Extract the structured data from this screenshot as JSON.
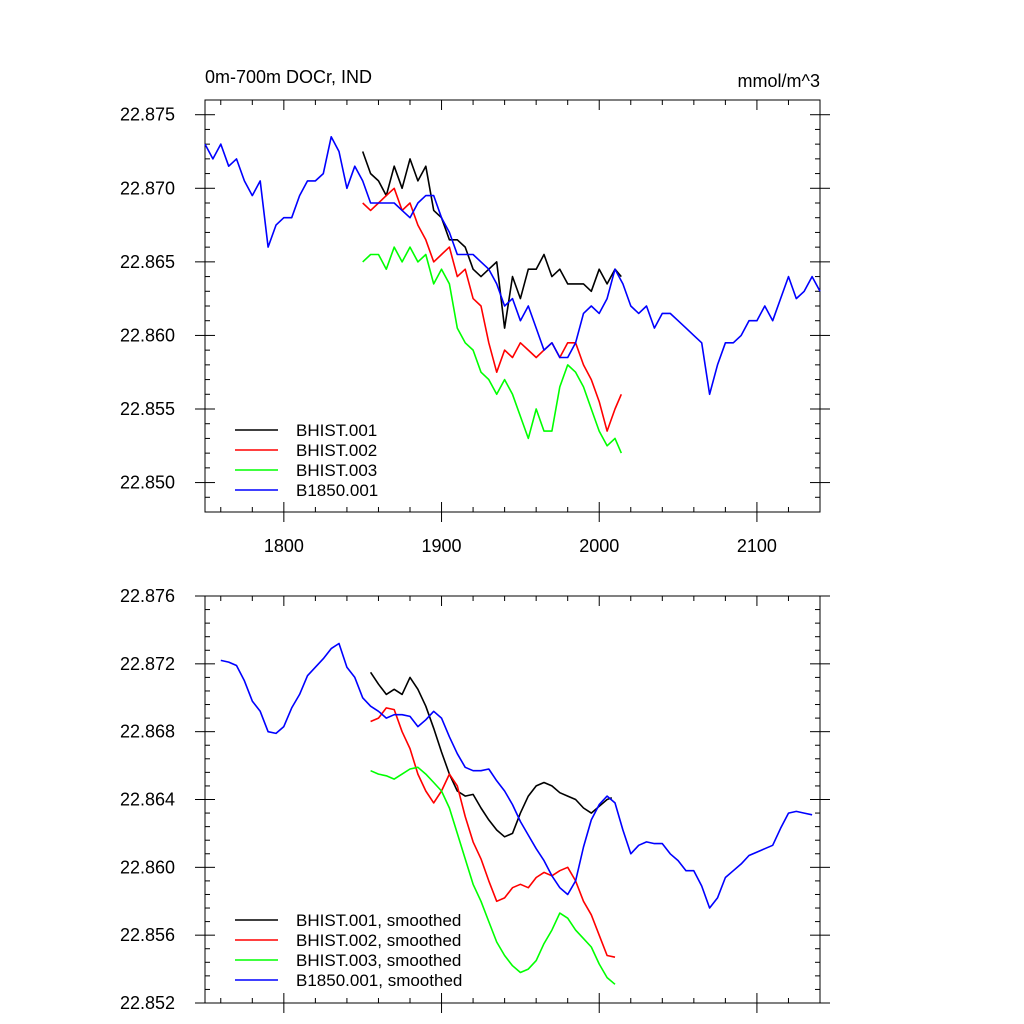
{
  "chart_data": [
    {
      "type": "line",
      "title": "0m-700m DOCr, IND",
      "units": "mmol/m^3",
      "xlabel": "",
      "ylabel": "",
      "xlim": [
        1750,
        2140
      ],
      "ylim": [
        22.848,
        22.876
      ],
      "xticks": [
        1800,
        1900,
        2000,
        2100
      ],
      "xtick_labels": [
        "1800",
        "1900",
        "2000",
        "2100"
      ],
      "yticks": [
        22.85,
        22.855,
        22.86,
        22.865,
        22.87,
        22.875
      ],
      "ytick_labels": [
        "22.850",
        "22.855",
        "22.860",
        "22.865",
        "22.870",
        "22.875"
      ],
      "legend_position": "bottom-left",
      "series": [
        {
          "name": "BHIST.001",
          "color": "#000000",
          "x": [
            1850,
            1855,
            1860,
            1865,
            1870,
            1875,
            1880,
            1885,
            1890,
            1895,
            1900,
            1905,
            1910,
            1915,
            1920,
            1925,
            1930,
            1935,
            1940,
            1945,
            1950,
            1955,
            1960,
            1965,
            1970,
            1975,
            1980,
            1985,
            1990,
            1995,
            2000,
            2005,
            2010,
            2014
          ],
          "values": [
            22.8725,
            22.871,
            22.8705,
            22.8695,
            22.8715,
            22.87,
            22.872,
            22.8705,
            22.8715,
            22.8685,
            22.868,
            22.8665,
            22.8665,
            22.866,
            22.8645,
            22.864,
            22.8645,
            22.865,
            22.8605,
            22.864,
            22.8625,
            22.8645,
            22.8645,
            22.8655,
            22.864,
            22.8645,
            22.8635,
            22.8635,
            22.8635,
            22.863,
            22.8645,
            22.8635,
            22.8645,
            22.864
          ]
        },
        {
          "name": "BHIST.002",
          "color": "#ff0000",
          "x": [
            1850,
            1855,
            1860,
            1865,
            1870,
            1875,
            1880,
            1885,
            1890,
            1895,
            1900,
            1905,
            1910,
            1915,
            1920,
            1925,
            1930,
            1935,
            1940,
            1945,
            1950,
            1955,
            1960,
            1965,
            1970,
            1975,
            1980,
            1985,
            1990,
            1995,
            2000,
            2005,
            2010,
            2014
          ],
          "values": [
            22.869,
            22.8685,
            22.869,
            22.8695,
            22.87,
            22.8685,
            22.869,
            22.8675,
            22.8665,
            22.865,
            22.8655,
            22.866,
            22.864,
            22.8645,
            22.8625,
            22.862,
            22.8595,
            22.8575,
            22.859,
            22.8585,
            22.8595,
            22.859,
            22.8585,
            22.859,
            22.8595,
            22.8585,
            22.8595,
            22.8595,
            22.858,
            22.857,
            22.8555,
            22.8535,
            22.855,
            22.856
          ]
        },
        {
          "name": "BHIST.003",
          "color": "#00ff00",
          "x": [
            1850,
            1855,
            1860,
            1865,
            1870,
            1875,
            1880,
            1885,
            1890,
            1895,
            1900,
            1905,
            1910,
            1915,
            1920,
            1925,
            1930,
            1935,
            1940,
            1945,
            1950,
            1955,
            1960,
            1965,
            1970,
            1975,
            1980,
            1985,
            1990,
            1995,
            2000,
            2005,
            2010,
            2014
          ],
          "values": [
            22.865,
            22.8655,
            22.8655,
            22.8645,
            22.866,
            22.865,
            22.866,
            22.865,
            22.8655,
            22.8635,
            22.8645,
            22.8635,
            22.8605,
            22.8595,
            22.859,
            22.8575,
            22.857,
            22.856,
            22.857,
            22.856,
            22.8545,
            22.853,
            22.855,
            22.8535,
            22.8535,
            22.8565,
            22.858,
            22.8575,
            22.8565,
            22.855,
            22.8535,
            22.8525,
            22.853,
            22.852
          ]
        },
        {
          "name": "B1850.001",
          "color": "#0000ff",
          "x": [
            1750,
            1755,
            1760,
            1765,
            1770,
            1775,
            1780,
            1785,
            1790,
            1795,
            1800,
            1805,
            1810,
            1815,
            1820,
            1825,
            1830,
            1835,
            1840,
            1845,
            1850,
            1855,
            1860,
            1865,
            1870,
            1875,
            1880,
            1885,
            1890,
            1895,
            1900,
            1905,
            1910,
            1915,
            1920,
            1925,
            1930,
            1935,
            1940,
            1945,
            1950,
            1955,
            1960,
            1965,
            1970,
            1975,
            1980,
            1985,
            1990,
            1995,
            2000,
            2005,
            2010,
            2015,
            2020,
            2025,
            2030,
            2035,
            2040,
            2045,
            2050,
            2055,
            2060,
            2065,
            2070,
            2075,
            2080,
            2085,
            2090,
            2095,
            2100,
            2105,
            2110,
            2115,
            2120,
            2125,
            2130,
            2135,
            2140
          ],
          "values": [
            22.873,
            22.872,
            22.873,
            22.8715,
            22.872,
            22.8705,
            22.8695,
            22.8705,
            22.866,
            22.8675,
            22.868,
            22.868,
            22.8695,
            22.8705,
            22.8705,
            22.871,
            22.8735,
            22.8725,
            22.87,
            22.8715,
            22.8705,
            22.869,
            22.869,
            22.869,
            22.869,
            22.8685,
            22.868,
            22.869,
            22.8695,
            22.8695,
            22.868,
            22.867,
            22.8655,
            22.8655,
            22.8655,
            22.865,
            22.8645,
            22.8635,
            22.862,
            22.8625,
            22.861,
            22.862,
            22.8605,
            22.859,
            22.8595,
            22.8585,
            22.8585,
            22.8595,
            22.8615,
            22.862,
            22.8615,
            22.8625,
            22.8645,
            22.8635,
            22.862,
            22.8615,
            22.862,
            22.8605,
            22.8615,
            22.8615,
            22.861,
            22.8605,
            22.86,
            22.8595,
            22.856,
            22.858,
            22.8595,
            22.8595,
            22.86,
            22.861,
            22.861,
            22.862,
            22.861,
            22.8625,
            22.864,
            22.8625,
            22.863,
            22.864,
            22.863
          ]
        }
      ]
    },
    {
      "type": "line",
      "title": "",
      "xlabel": "",
      "ylabel": "",
      "xlim": [
        1750,
        2140
      ],
      "ylim": [
        22.852,
        22.876
      ],
      "xticks": [
        1800,
        1900,
        2000,
        2100
      ],
      "yticks": [
        22.852,
        22.856,
        22.86,
        22.864,
        22.868,
        22.872,
        22.876
      ],
      "ytick_labels": [
        "22.852",
        "22.856",
        "22.860",
        "22.864",
        "22.868",
        "22.872",
        "22.876"
      ],
      "legend_position": "bottom-left",
      "series": [
        {
          "name": "BHIST.001, smoothed",
          "color": "#000000",
          "x": [
            1855,
            1860,
            1865,
            1870,
            1875,
            1880,
            1885,
            1890,
            1895,
            1900,
            1905,
            1910,
            1915,
            1920,
            1925,
            1930,
            1935,
            1940,
            1945,
            1950,
            1955,
            1960,
            1965,
            1970,
            1975,
            1980,
            1985,
            1990,
            1995,
            2000,
            2005,
            2008
          ],
          "values": [
            22.8715,
            22.8708,
            22.8702,
            22.8705,
            22.8702,
            22.8712,
            22.8705,
            22.8695,
            22.8682,
            22.8668,
            22.8655,
            22.8645,
            22.8642,
            22.8643,
            22.8635,
            22.8628,
            22.8622,
            22.8618,
            22.862,
            22.8632,
            22.8642,
            22.8648,
            22.865,
            22.8648,
            22.8644,
            22.8642,
            22.864,
            22.8635,
            22.8632,
            22.8636,
            22.864,
            22.8641
          ]
        },
        {
          "name": "BHIST.002, smoothed",
          "color": "#ff0000",
          "x": [
            1855,
            1860,
            1865,
            1870,
            1875,
            1880,
            1885,
            1890,
            1895,
            1900,
            1905,
            1910,
            1915,
            1920,
            1925,
            1930,
            1935,
            1940,
            1945,
            1950,
            1955,
            1960,
            1965,
            1970,
            1975,
            1980,
            1985,
            1990,
            1995,
            2000,
            2005,
            2010
          ],
          "values": [
            22.8686,
            22.8688,
            22.8694,
            22.8693,
            22.868,
            22.867,
            22.8655,
            22.8645,
            22.8638,
            22.8645,
            22.8655,
            22.8648,
            22.863,
            22.8615,
            22.8605,
            22.8592,
            22.858,
            22.8582,
            22.8588,
            22.859,
            22.8588,
            22.8594,
            22.8597,
            22.8595,
            22.8598,
            22.86,
            22.8592,
            22.858,
            22.8572,
            22.856,
            22.8548,
            22.8547
          ]
        },
        {
          "name": "BHIST.003, smoothed",
          "color": "#00ff00",
          "x": [
            1855,
            1860,
            1865,
            1870,
            1875,
            1880,
            1885,
            1890,
            1895,
            1900,
            1905,
            1910,
            1915,
            1920,
            1925,
            1930,
            1935,
            1940,
            1945,
            1950,
            1955,
            1960,
            1965,
            1970,
            1975,
            1980,
            1985,
            1990,
            1995,
            2000,
            2005,
            2010
          ],
          "values": [
            22.8657,
            22.8655,
            22.8654,
            22.8652,
            22.8655,
            22.8658,
            22.8659,
            22.8655,
            22.865,
            22.8645,
            22.8635,
            22.862,
            22.8605,
            22.859,
            22.858,
            22.8568,
            22.8556,
            22.8548,
            22.8542,
            22.8538,
            22.854,
            22.8545,
            22.8555,
            22.8563,
            22.8573,
            22.857,
            22.8563,
            22.8558,
            22.8553,
            22.8543,
            22.8535,
            22.8531
          ]
        },
        {
          "name": "B1850.001, smoothed",
          "color": "#0000ff",
          "x": [
            1760,
            1765,
            1770,
            1775,
            1780,
            1785,
            1790,
            1795,
            1800,
            1805,
            1810,
            1815,
            1820,
            1825,
            1830,
            1835,
            1840,
            1845,
            1850,
            1855,
            1860,
            1865,
            1870,
            1875,
            1880,
            1885,
            1890,
            1895,
            1900,
            1905,
            1910,
            1915,
            1920,
            1925,
            1930,
            1935,
            1940,
            1945,
            1950,
            1955,
            1960,
            1965,
            1970,
            1975,
            1980,
            1985,
            1990,
            1995,
            2000,
            2005,
            2010,
            2015,
            2020,
            2025,
            2030,
            2035,
            2040,
            2045,
            2050,
            2055,
            2060,
            2065,
            2070,
            2075,
            2080,
            2085,
            2090,
            2095,
            2100,
            2105,
            2110,
            2115,
            2120,
            2125,
            2130,
            2135
          ],
          "values": [
            22.8722,
            22.8721,
            22.8719,
            22.871,
            22.8698,
            22.8692,
            22.868,
            22.8679,
            22.8683,
            22.8694,
            22.8702,
            22.8713,
            22.8718,
            22.8723,
            22.8729,
            22.8732,
            22.8718,
            22.8712,
            22.87,
            22.8695,
            22.8692,
            22.8688,
            22.869,
            22.869,
            22.8689,
            22.8683,
            22.8687,
            22.8692,
            22.8688,
            22.8677,
            22.8667,
            22.8659,
            22.8657,
            22.8657,
            22.8658,
            22.8651,
            22.8645,
            22.8637,
            22.8627,
            22.8619,
            22.8611,
            22.8604,
            22.8595,
            22.8588,
            22.8584,
            22.8592,
            22.8612,
            22.8628,
            22.8637,
            22.8642,
            22.8638,
            22.8622,
            22.8608,
            22.8613,
            22.8615,
            22.8614,
            22.8614,
            22.8608,
            22.8604,
            22.8598,
            22.8598,
            22.8589,
            22.8576,
            22.8582,
            22.8594,
            22.8598,
            22.8602,
            22.8607,
            22.8609,
            22.8611,
            22.8613,
            22.8623,
            22.8632,
            22.8633,
            22.8632,
            22.8631
          ]
        }
      ]
    }
  ]
}
